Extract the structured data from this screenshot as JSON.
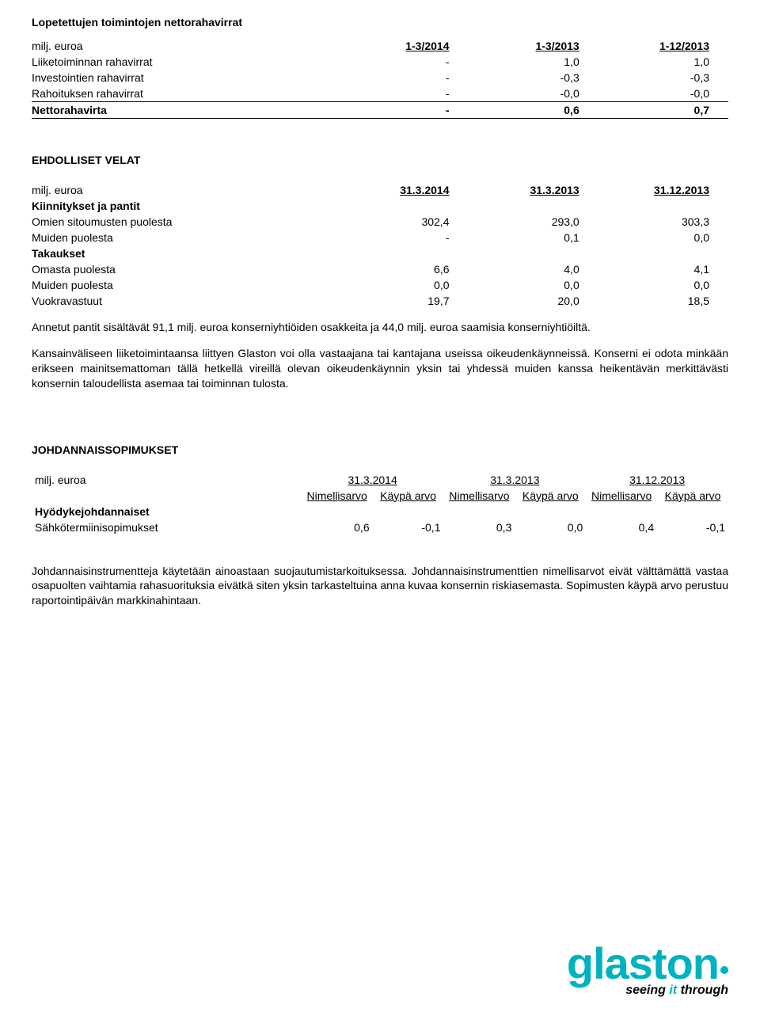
{
  "cashflow": {
    "title": "Lopetettujen toimintojen nettorahavirrat",
    "unit": "milj. euroa",
    "headers": [
      "1-3/2014",
      "1-3/2013",
      "1-12/2013"
    ],
    "rows": [
      {
        "label": "Liiketoiminnan rahavirrat",
        "v": [
          "-",
          "1,0",
          "1,0"
        ],
        "bold": false,
        "underline": false
      },
      {
        "label": "Investointien rahavirrat",
        "v": [
          "-",
          "-0,3",
          "-0,3"
        ],
        "bold": false,
        "underline": false
      },
      {
        "label": "Rahoituksen rahavirrat",
        "v": [
          "-",
          "-0,0",
          "-0,0"
        ],
        "bold": false,
        "underline": true
      },
      {
        "label": "Nettorahavirta",
        "v": [
          "-",
          "0,6",
          "0,7"
        ],
        "bold": true,
        "underline": true
      }
    ]
  },
  "contingent": {
    "title": "EHDOLLISET VELAT",
    "unit": "milj. euroa",
    "headers": [
      "31.3.2014",
      "31.3.2013",
      "31.12.2013"
    ],
    "groups": [
      {
        "heading": "Kiinnitykset ja pantit",
        "rows": [
          {
            "label": "Omien sitoumusten puolesta",
            "v": [
              "302,4",
              "293,0",
              "303,3"
            ]
          },
          {
            "label": "Muiden puolesta",
            "v": [
              "-",
              "0,1",
              "0,0"
            ]
          }
        ]
      },
      {
        "heading": "Takaukset",
        "rows": [
          {
            "label": "Omasta puolesta",
            "v": [
              "6,6",
              "4,0",
              "4,1"
            ]
          },
          {
            "label": "Muiden puolesta",
            "v": [
              "0,0",
              "0,0",
              "0,0"
            ]
          },
          {
            "label": "Vuokravastuut",
            "v": [
              "19,7",
              "20,0",
              "18,5"
            ]
          }
        ]
      }
    ],
    "para1": "Annetut pantit sisältävät 91,1 milj. euroa konserniyhtiöiden osakkeita ja 44,0 milj. euroa saamisia konserniyhtiöiltä.",
    "para2": "Kansainväliseen liiketoimintaansa liittyen Glaston voi olla vastaajana tai kantajana useissa oikeudenkäynneissä. Konserni ei odota minkään erikseen mainitsemattoman tällä hetkellä vireillä olevan oikeudenkäynnin yksin tai yhdessä muiden kanssa heikentävän merkittävästi konsernin taloudellista asemaa tai toiminnan tulosta."
  },
  "deriv": {
    "title": "JOHDANNAISSOPIMUKSET",
    "unit": "milj. euroa",
    "dates": [
      "31.3.2014",
      "31.3.2013",
      "31.12.2013"
    ],
    "subheaders": [
      "Nimellisarvo",
      "Käypä arvo"
    ],
    "row_heading": "Hyödykejohdannaiset",
    "rows": [
      {
        "label": "Sähkötermiinisopimukset",
        "v": [
          "0,6",
          "-0,1",
          "0,3",
          "0,0",
          "0,4",
          "-0,1"
        ]
      }
    ],
    "para": "Johdannaisinstrumentteja käytetään ainoastaan suojautumistarkoituksessa. Johdannaisinstrumenttien nimellisarvot eivät välttämättä vastaa osapuolten vaihtamia rahasuorituksia eivätkä siten yksin tarkasteltuina anna kuvaa konsernin riskiasemasta. Sopimusten käypä arvo perustuu raportointipäivän markkinahintaan."
  },
  "logo": {
    "text": "glaston",
    "tag_black": "seeing ",
    "tag_teal": "it",
    "tag_black2": " through"
  }
}
